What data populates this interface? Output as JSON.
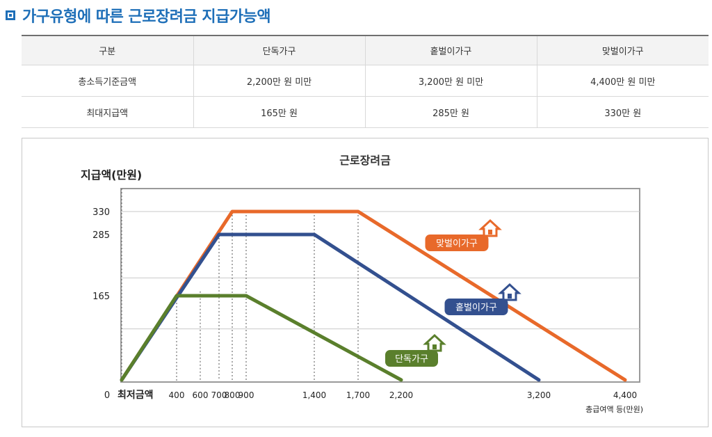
{
  "heading": {
    "title": "가구유형에 따른 근로장려금 지급가능액"
  },
  "table": {
    "headers": [
      "구분",
      "단독가구",
      "홑벌이가구",
      "맞벌이가구"
    ],
    "rows": [
      [
        "총소득기준금액",
        "2,200만 원 미만",
        "3,200만 원 미만",
        "4,400만 원 미만"
      ],
      [
        "최대지급액",
        "165만 원",
        "285만 원",
        "330만 원"
      ]
    ]
  },
  "chart_data": {
    "type": "line",
    "title": "근로장려금",
    "ylabel": "지급액(만원)",
    "xlabel": "총급여액 등(만원)",
    "x_origin_label": "최저금액",
    "y_origin_label": "0",
    "x_ticks": [
      400,
      600,
      700,
      800,
      900,
      1400,
      1700,
      2200,
      3200,
      4400
    ],
    "x_tick_labels": [
      "400",
      "600",
      "700",
      "800",
      "900",
      "1,400",
      "1,700",
      "2,200",
      "3,200",
      "4,400"
    ],
    "y_ticks": [
      165,
      285,
      330
    ],
    "y_tick_labels": [
      "165",
      "285",
      "330"
    ],
    "series": [
      {
        "name": "맞벌이가구",
        "color": "#e8692a",
        "x": [
          0,
          800,
          1700,
          4400
        ],
        "y": [
          0,
          330,
          330,
          0
        ]
      },
      {
        "name": "홑벌이가구",
        "color": "#33508f",
        "x": [
          0,
          700,
          1400,
          3200
        ],
        "y": [
          0,
          285,
          285,
          0
        ]
      },
      {
        "name": "단독가구",
        "color": "#5a7f2c",
        "x": [
          0,
          400,
          900,
          2200
        ],
        "y": [
          0,
          165,
          165,
          0
        ]
      }
    ],
    "grid": true,
    "legend": "labels-on-lines"
  }
}
